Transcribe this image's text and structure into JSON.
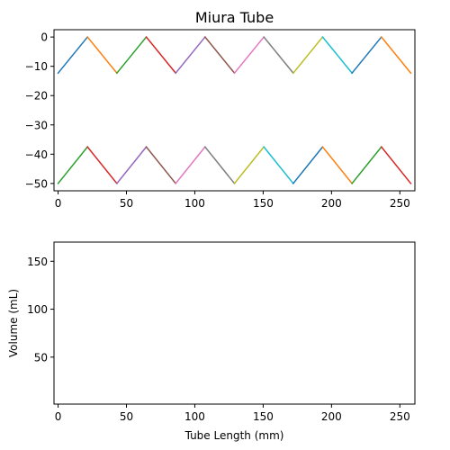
{
  "chart_data": [
    {
      "type": "line",
      "title": "Miura Tube",
      "xlabel": "",
      "ylabel": "",
      "xlim": [
        -3,
        261
      ],
      "ylim": [
        -52.5,
        2.5
      ],
      "xticks": [
        0,
        50,
        100,
        150,
        200,
        250
      ],
      "yticks": [
        0,
        -10,
        -20,
        -30,
        -40,
        -50
      ],
      "legend": "none",
      "grid": false,
      "series": [
        {
          "color": "#1f77b4",
          "x": [
            0,
            21.5
          ],
          "y": [
            -12.3,
            0
          ]
        },
        {
          "color": "#ff7f0e",
          "x": [
            21.5,
            43
          ],
          "y": [
            0,
            -12.3
          ]
        },
        {
          "color": "#2ca02c",
          "x": [
            43,
            64.5
          ],
          "y": [
            -12.3,
            0
          ]
        },
        {
          "color": "#d62728",
          "x": [
            64.5,
            86
          ],
          "y": [
            0,
            -12.3
          ]
        },
        {
          "color": "#9467bd",
          "x": [
            86,
            107.5
          ],
          "y": [
            -12.3,
            0
          ]
        },
        {
          "color": "#8c564b",
          "x": [
            107.5,
            129
          ],
          "y": [
            0,
            -12.3
          ]
        },
        {
          "color": "#e377c2",
          "x": [
            129,
            150.5
          ],
          "y": [
            -12.3,
            0
          ]
        },
        {
          "color": "#7f7f7f",
          "x": [
            150.5,
            172
          ],
          "y": [
            0,
            -12.3
          ]
        },
        {
          "color": "#bcbd22",
          "x": [
            172,
            193.5
          ],
          "y": [
            -12.3,
            0
          ]
        },
        {
          "color": "#17becf",
          "x": [
            193.5,
            215
          ],
          "y": [
            0,
            -12.3
          ]
        },
        {
          "color": "#1f77b4",
          "x": [
            215,
            236.5
          ],
          "y": [
            -12.3,
            0
          ]
        },
        {
          "color": "#ff7f0e",
          "x": [
            236.5,
            258
          ],
          "y": [
            0,
            -12.3
          ]
        },
        {
          "color": "#2ca02c",
          "x": [
            0,
            21.5
          ],
          "y": [
            -50,
            -37.5
          ]
        },
        {
          "color": "#d62728",
          "x": [
            21.5,
            43
          ],
          "y": [
            -37.5,
            -50
          ]
        },
        {
          "color": "#9467bd",
          "x": [
            43,
            64.5
          ],
          "y": [
            -50,
            -37.5
          ]
        },
        {
          "color": "#8c564b",
          "x": [
            64.5,
            86
          ],
          "y": [
            -37.5,
            -50
          ]
        },
        {
          "color": "#e377c2",
          "x": [
            86,
            107.5
          ],
          "y": [
            -50,
            -37.5
          ]
        },
        {
          "color": "#7f7f7f",
          "x": [
            107.5,
            129
          ],
          "y": [
            -37.5,
            -50
          ]
        },
        {
          "color": "#bcbd22",
          "x": [
            129,
            150.5
          ],
          "y": [
            -50,
            -37.5
          ]
        },
        {
          "color": "#17becf",
          "x": [
            150.5,
            172
          ],
          "y": [
            -37.5,
            -50
          ]
        },
        {
          "color": "#1f77b4",
          "x": [
            172,
            193.5
          ],
          "y": [
            -50,
            -37.5
          ]
        },
        {
          "color": "#ff7f0e",
          "x": [
            193.5,
            215
          ],
          "y": [
            -37.5,
            -50
          ]
        },
        {
          "color": "#2ca02c",
          "x": [
            215,
            236.5
          ],
          "y": [
            -50,
            -37.5
          ]
        },
        {
          "color": "#d62728",
          "x": [
            236.5,
            258
          ],
          "y": [
            -37.5,
            -50
          ]
        }
      ]
    },
    {
      "type": "line",
      "title": "",
      "xlabel": "Tube Length (mm)",
      "ylabel": "Volume (mL)",
      "xlim": [
        -3,
        261
      ],
      "ylim": [
        1,
        170
      ],
      "xticks": [
        0,
        50,
        100,
        150,
        200,
        250
      ],
      "yticks": [
        50,
        100,
        150
      ],
      "legend": "none",
      "grid": false,
      "series": []
    }
  ]
}
